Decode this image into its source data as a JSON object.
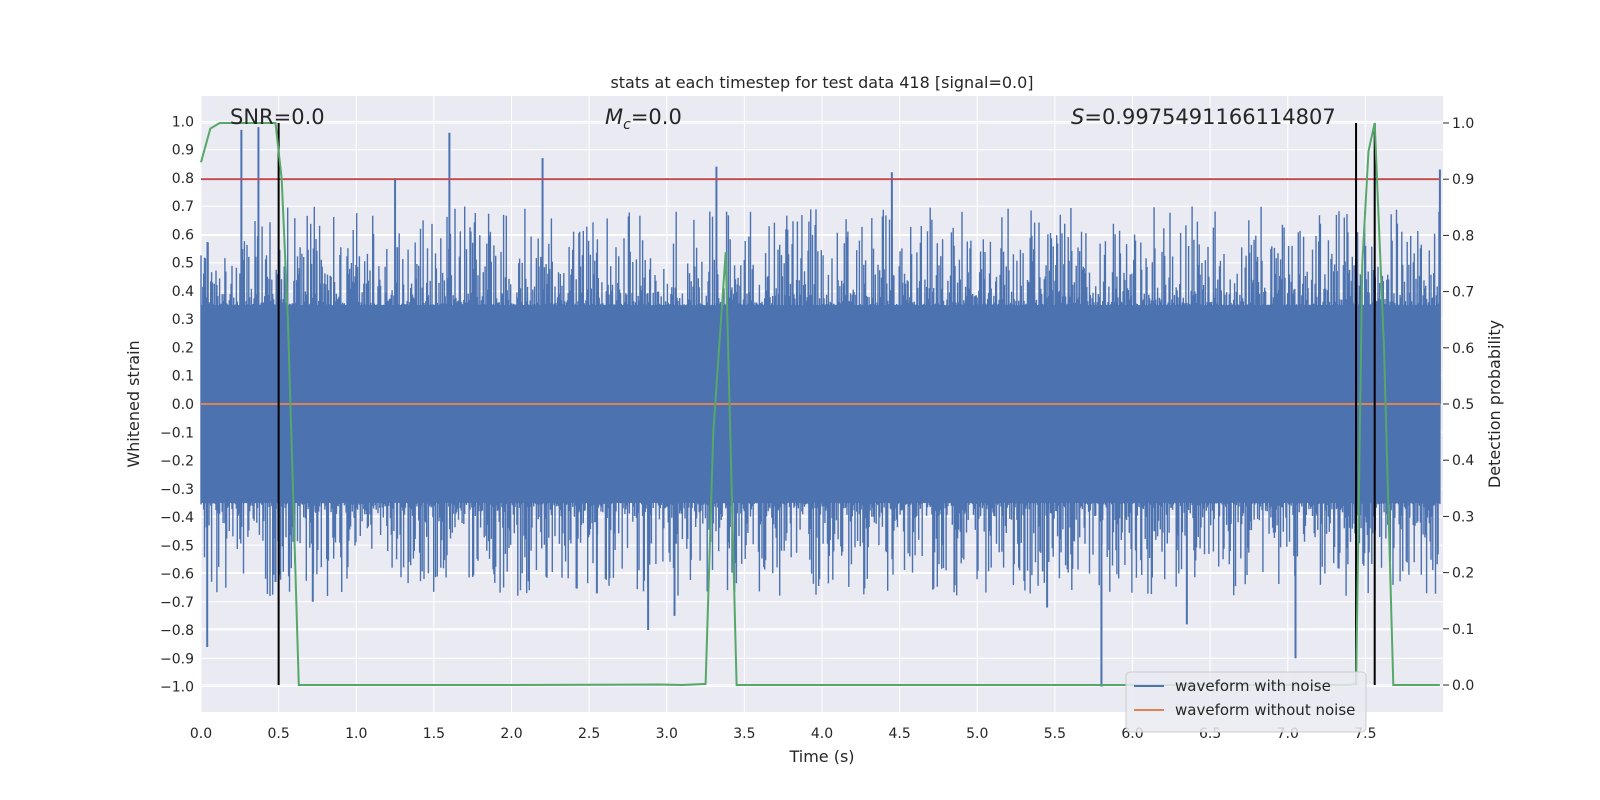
{
  "chart_data": {
    "type": "line",
    "title": "stats at each timestep for test data 418 [signal=0.0]",
    "xlabel": "Time (s)",
    "ylabel": "Whitened strain",
    "y2label": "Detection probability",
    "xlim": [
      0.0,
      8.0
    ],
    "ylim": [
      -1.09,
      1.09
    ],
    "y2lim": [
      -0.048,
      1.048
    ],
    "x_ticks": [
      0.0,
      0.5,
      1.0,
      1.5,
      2.0,
      2.5,
      3.0,
      3.5,
      4.0,
      4.5,
      5.0,
      5.5,
      6.0,
      6.5,
      7.0,
      7.5
    ],
    "x_tick_labels": [
      "0.0",
      "0.5",
      "1.0",
      "1.5",
      "2.0",
      "2.5",
      "3.0",
      "3.5",
      "4.0",
      "4.5",
      "5.0",
      "5.5",
      "6.0",
      "6.5",
      "7.0",
      "7.5"
    ],
    "y_ticks": [
      -1.0,
      -0.9,
      -0.8,
      -0.7,
      -0.6,
      -0.5,
      -0.4,
      -0.3,
      -0.2,
      -0.1,
      0.0,
      0.1,
      0.2,
      0.3,
      0.4,
      0.5,
      0.6,
      0.7,
      0.8,
      0.9,
      1.0
    ],
    "y_tick_labels": [
      "−1.0",
      "−0.9",
      "−0.8",
      "−0.7",
      "−0.6",
      "−0.5",
      "−0.4",
      "−0.3",
      "−0.2",
      "−0.1",
      "0.0",
      "0.1",
      "0.2",
      "0.3",
      "0.4",
      "0.5",
      "0.6",
      "0.7",
      "0.8",
      "0.9",
      "1.0"
    ],
    "y2_ticks": [
      0.0,
      0.1,
      0.2,
      0.3,
      0.4,
      0.5,
      0.6,
      0.7,
      0.8,
      0.9,
      1.0
    ],
    "y2_tick_labels": [
      "0.0",
      "0.1",
      "0.2",
      "0.3",
      "0.4",
      "0.5",
      "0.6",
      "0.7",
      "0.8",
      "0.9",
      "1.0"
    ],
    "annotations": {
      "snr": "SNR=0.0",
      "mc_symbol": "M",
      "mc_sub": "c",
      "mc_value": "=0.0",
      "s_symbol": "S",
      "s_value": "=0.9975491166114807"
    },
    "threshold": 0.9,
    "vertical_markers": [
      0.5,
      7.44,
      7.56
    ],
    "series": [
      {
        "name": "waveform with noise",
        "color": "#4c72b0",
        "kind": "noise-envelope",
        "envelope": {
          "upper": 0.35,
          "lower": -0.35
        },
        "spikes": [
          {
            "x": 0.04,
            "y": -0.86
          },
          {
            "x": 0.26,
            "y": 0.97
          },
          {
            "x": 0.37,
            "y": 0.98
          },
          {
            "x": 0.48,
            "y": -0.63
          },
          {
            "x": 1.25,
            "y": 0.8
          },
          {
            "x": 1.6,
            "y": 0.96
          },
          {
            "x": 2.2,
            "y": 0.87
          },
          {
            "x": 2.88,
            "y": -0.8
          },
          {
            "x": 3.32,
            "y": 0.84
          },
          {
            "x": 4.45,
            "y": 0.82
          },
          {
            "x": 5.8,
            "y": -1.0
          },
          {
            "x": 6.35,
            "y": -0.78
          },
          {
            "x": 7.05,
            "y": -0.9
          },
          {
            "x": 7.98,
            "y": 0.83
          },
          {
            "x": 0.72,
            "y": -0.7
          },
          {
            "x": 2.55,
            "y": -0.67
          },
          {
            "x": 3.05,
            "y": -0.75
          },
          {
            "x": 5.45,
            "y": -0.72
          }
        ]
      },
      {
        "name": "waveform without noise",
        "color": "#dd8452",
        "kind": "flat",
        "value": 0.0
      },
      {
        "name": "detection probability",
        "color": "#55a868",
        "axis": "y2",
        "kind": "line",
        "x": [
          0.0,
          0.06,
          0.12,
          0.3,
          0.48,
          0.52,
          0.56,
          0.63,
          2.0,
          2.95,
          3.1,
          3.25,
          3.3,
          3.38,
          3.45,
          7.4,
          7.44,
          7.48,
          7.52,
          7.56,
          7.62,
          7.68,
          7.98
        ],
        "y": [
          0.93,
          0.99,
          1.0,
          1.0,
          1.0,
          0.9,
          0.65,
          0.0,
          0.0,
          0.001,
          0.0,
          0.002,
          0.45,
          0.77,
          0.0,
          0.0,
          0.003,
          0.75,
          0.95,
          1.0,
          0.6,
          0.0,
          0.0
        ]
      }
    ],
    "legend": {
      "location": "lower-right",
      "entries": [
        {
          "label": "waveform with noise",
          "color": "#4c72b0"
        },
        {
          "label": "waveform without noise",
          "color": "#dd8452"
        }
      ]
    },
    "colors": {
      "background": "#eaeaf2",
      "grid": "#ffffff",
      "threshold": "#c44e52",
      "marker": "#000000"
    }
  }
}
